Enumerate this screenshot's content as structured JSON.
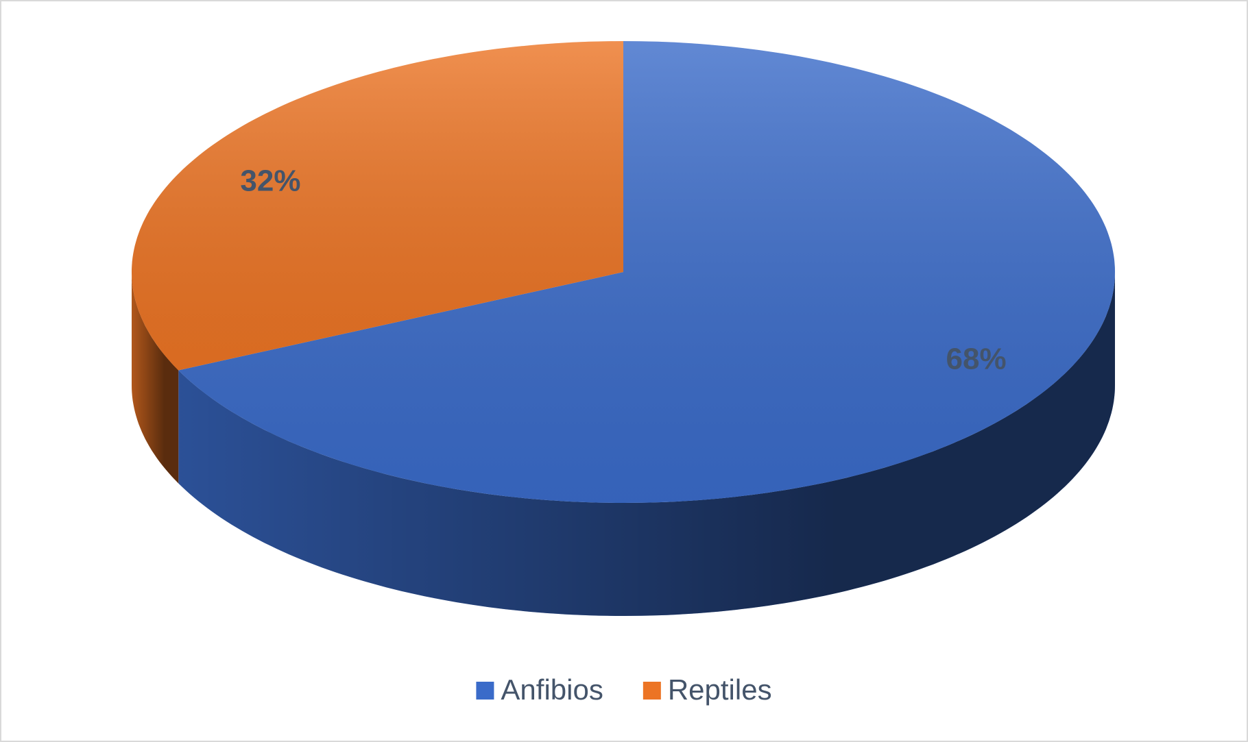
{
  "chart_data": {
    "type": "pie3d",
    "categories": [
      "Anfibios",
      "Reptiles"
    ],
    "values": [
      68,
      32
    ],
    "value_labels": [
      "68%",
      "32%"
    ],
    "colors": [
      "#3a6bc9",
      "#ec7424"
    ],
    "legend": "bottom"
  }
}
